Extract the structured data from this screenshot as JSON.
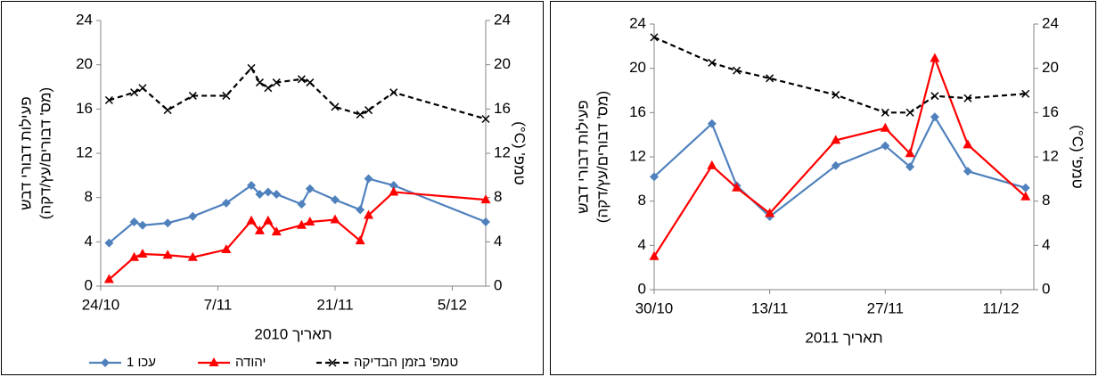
{
  "chart_data": [
    {
      "type": "line",
      "xlabel": "תאריך 2010",
      "ylabel": [
        "פעילות דבורי דבש",
        "(מס' דבורים/עץ/דקה)"
      ],
      "y2label": "טמפ' (C°)",
      "x": [
        "2010-10-25",
        "2010-10-28",
        "2010-10-29",
        "2010-11-01",
        "2010-11-04",
        "2010-11-08",
        "2010-11-11",
        "2010-11-12",
        "2010-11-13",
        "2010-11-14",
        "2010-11-17",
        "2010-11-18",
        "2010-11-21",
        "2010-11-24",
        "2010-11-25",
        "2010-11-28",
        "2010-12-09"
      ],
      "xlim": [
        "2010-10-24",
        "2010-12-09"
      ],
      "xticks": [
        {
          "value": "2010-10-24",
          "label": "24/10"
        },
        {
          "value": "2010-11-07",
          "label": "7/11"
        },
        {
          "value": "2010-11-21",
          "label": "21/11"
        },
        {
          "value": "2010-12-05",
          "label": "5/12"
        }
      ],
      "ylim": [
        0,
        24
      ],
      "yticks": [
        0,
        4,
        8,
        12,
        16,
        20,
        24
      ],
      "y2lim": [
        0,
        24
      ],
      "y2ticks": [
        0,
        4,
        8,
        12,
        16,
        20,
        24
      ],
      "legend": "bottom",
      "series": [
        {
          "name": "עכו 1",
          "color": "#4f81bd",
          "marker": "diamond",
          "linestyle": "solid",
          "values": [
            3.9,
            5.8,
            5.5,
            5.7,
            6.3,
            7.5,
            9.1,
            8.3,
            8.5,
            8.3,
            7.4,
            8.8,
            7.8,
            6.9,
            9.7,
            9.1,
            5.8
          ]
        },
        {
          "name": "יהודה",
          "color": "#ff0000",
          "marker": "triangle",
          "linestyle": "solid",
          "values": [
            0.6,
            2.6,
            2.9,
            2.8,
            2.6,
            3.3,
            5.9,
            5.0,
            5.9,
            4.9,
            5.5,
            5.8,
            6.0,
            4.1,
            6.4,
            8.5,
            7.8
          ]
        },
        {
          "name": "טמפ' בזמן הבדיקה",
          "color": "#000000",
          "marker": "x",
          "linestyle": "dashed",
          "axis": "y2",
          "values": [
            16.8,
            17.5,
            17.9,
            15.9,
            17.2,
            17.2,
            19.7,
            18.4,
            17.9,
            18.4,
            18.7,
            18.4,
            16.2,
            15.5,
            15.9,
            17.5,
            15.1
          ]
        }
      ]
    },
    {
      "type": "line",
      "xlabel": "תאריך 2011",
      "ylabel": [
        "פעילות דבורי דבש",
        "(מס' דבורים/עץ/דקה)"
      ],
      "y2label": "טמפ' (C°)",
      "x": [
        "2011-10-30",
        "2011-11-06",
        "2011-11-09",
        "2011-11-13",
        "2011-11-21",
        "2011-11-27",
        "2011-11-30",
        "2011-12-03",
        "2011-12-07",
        "2011-12-14"
      ],
      "xlim": [
        "2011-10-30",
        "2011-12-15"
      ],
      "xticks": [
        {
          "value": "2011-10-30",
          "label": "30/10"
        },
        {
          "value": "2011-11-13",
          "label": "13/11"
        },
        {
          "value": "2011-11-27",
          "label": "27/11"
        },
        {
          "value": "2011-12-11",
          "label": "11/12"
        }
      ],
      "ylim": [
        0,
        24
      ],
      "yticks": [
        0,
        4,
        8,
        12,
        16,
        20,
        24
      ],
      "y2lim": [
        0,
        24
      ],
      "y2ticks": [
        0,
        4,
        8,
        12,
        16,
        20,
        24
      ],
      "series": [
        {
          "color": "#4f81bd",
          "marker": "diamond",
          "linestyle": "solid",
          "values": [
            10.2,
            15.0,
            9.4,
            6.6,
            11.2,
            13.0,
            11.1,
            15.6,
            10.7,
            9.2
          ]
        },
        {
          "color": "#ff0000",
          "marker": "triangle",
          "linestyle": "solid",
          "values": [
            3.0,
            11.2,
            9.2,
            6.9,
            13.5,
            14.6,
            12.3,
            20.9,
            13.1,
            8.4
          ]
        },
        {
          "color": "#000000",
          "marker": "x",
          "linestyle": "dashed",
          "axis": "y2",
          "values": [
            22.8,
            20.5,
            19.8,
            19.1,
            17.6,
            16.0,
            16.0,
            17.5,
            17.3,
            17.7
          ]
        }
      ]
    }
  ]
}
